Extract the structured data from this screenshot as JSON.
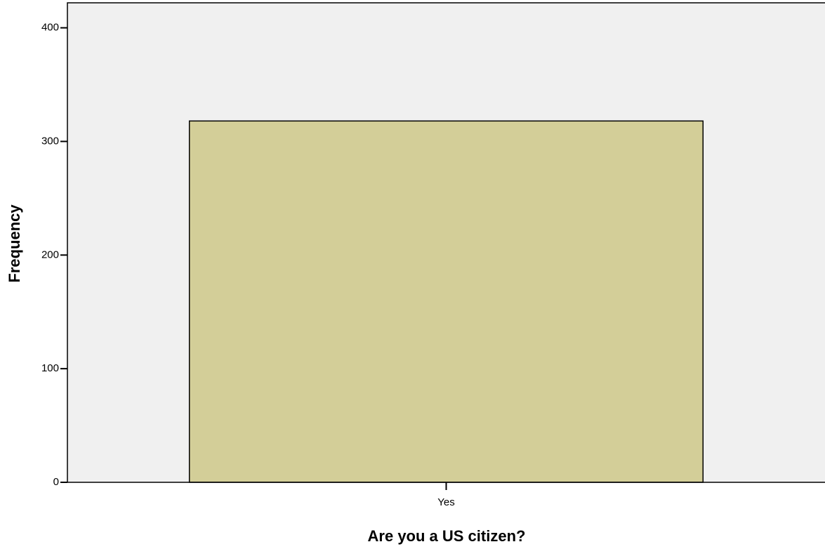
{
  "chart_data": {
    "type": "bar",
    "xlabel": "Are you a US citizen?",
    "ylabel": "Frequency",
    "categories": [
      "Yes"
    ],
    "values": [
      318
    ],
    "color": "#d3ce98",
    "plot_background": "#f0f0f0",
    "ylim": [
      0,
      422
    ],
    "yticks": [
      0,
      100,
      200,
      300,
      400
    ]
  }
}
